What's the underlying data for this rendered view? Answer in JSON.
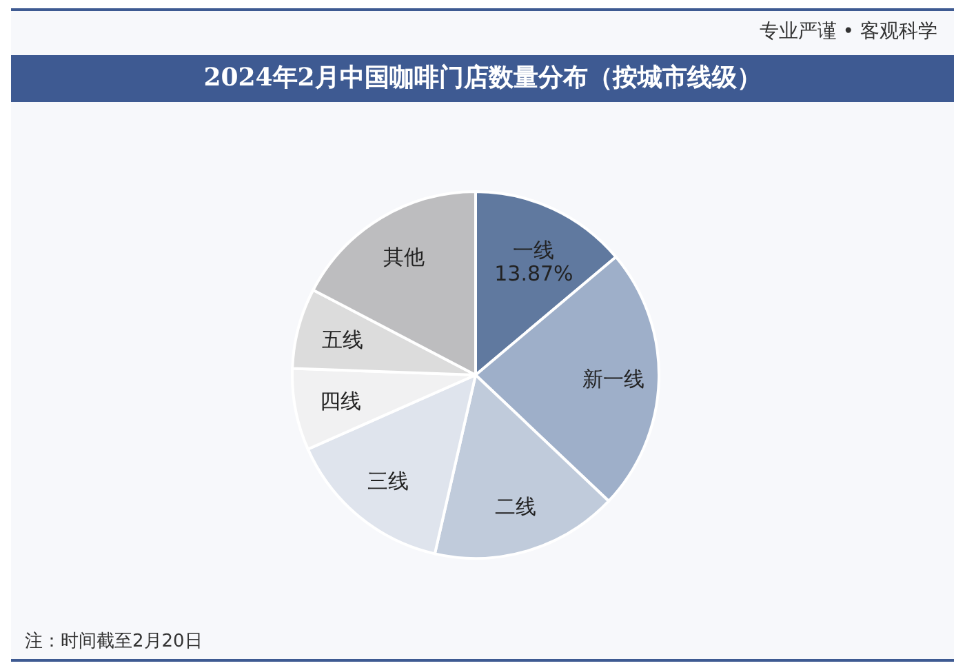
{
  "chart_data": {
    "type": "pie",
    "title": "2024年2月中国咖啡门店数量分布（按城市线级）",
    "categories": [
      "一线",
      "新一线",
      "二线",
      "三线",
      "四线",
      "五线",
      "其他"
    ],
    "values": [
      13.87,
      23.2,
      16.5,
      14.8,
      7.2,
      7.1,
      17.33
    ],
    "colors": [
      "#60799f",
      "#9eafc9",
      "#c0cbdb",
      "#dfe4ed",
      "#f1f1f2",
      "#dcdcdc",
      "#bdbdbf"
    ],
    "value_labels": [
      "13.87%",
      null,
      null,
      null,
      null,
      null,
      null
    ],
    "legend": false,
    "annotations": [
      "专业严谨 • 客观科学",
      "注：时间截至2月20日"
    ]
  }
}
